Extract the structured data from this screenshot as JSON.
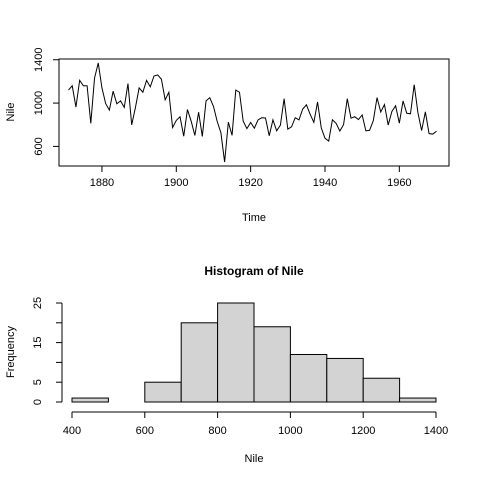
{
  "chart_data": [
    {
      "type": "line",
      "title": "",
      "xlabel": "Time",
      "ylabel": "Nile",
      "xlim": [
        1871,
        1970
      ],
      "ylim": [
        456,
        1370
      ],
      "x_ticks": [
        1880,
        1900,
        1920,
        1940,
        1960
      ],
      "y_ticks": [
        600,
        1000,
        1400
      ],
      "grid": false,
      "x_start": 1871,
      "series": [
        {
          "values": [
            1120,
            1160,
            963,
            1210,
            1160,
            1160,
            813,
            1230,
            1370,
            1140,
            995,
            935,
            1110,
            994,
            1020,
            960,
            1180,
            799,
            958,
            1140,
            1100,
            1210,
            1150,
            1250,
            1260,
            1220,
            1030,
            1100,
            774,
            840,
            874,
            694,
            940,
            833,
            701,
            916,
            692,
            1020,
            1050,
            969,
            831,
            726,
            456,
            824,
            702,
            1120,
            1100,
            832,
            764,
            821,
            768,
            845,
            864,
            862,
            698,
            845,
            744,
            796,
            1040,
            759,
            781,
            865,
            845,
            944,
            984,
            897,
            822,
            1010,
            771,
            676,
            649,
            846,
            812,
            742,
            801,
            1040,
            860,
            874,
            848,
            890,
            744,
            749,
            838,
            1050,
            918,
            986,
            797,
            923,
            975,
            815,
            1020,
            906,
            901,
            1170,
            912,
            746,
            919,
            718,
            714,
            740
          ]
        }
      ]
    },
    {
      "type": "bar",
      "subtype": "histogram",
      "title": "Histogram of Nile",
      "xlabel": "Nile",
      "ylabel": "Frequency",
      "bin_edges": [
        400,
        500,
        600,
        700,
        800,
        900,
        1000,
        1100,
        1200,
        1300,
        1400
      ],
      "values": [
        1,
        0,
        5,
        20,
        25,
        19,
        12,
        11,
        6,
        1
      ],
      "xlim": [
        400,
        1400
      ],
      "ylim": [
        0,
        25
      ],
      "x_ticks": [
        400,
        600,
        800,
        1000,
        1200,
        1400
      ],
      "y_ticks": [
        0,
        5,
        15,
        25
      ],
      "grid": false
    }
  ]
}
